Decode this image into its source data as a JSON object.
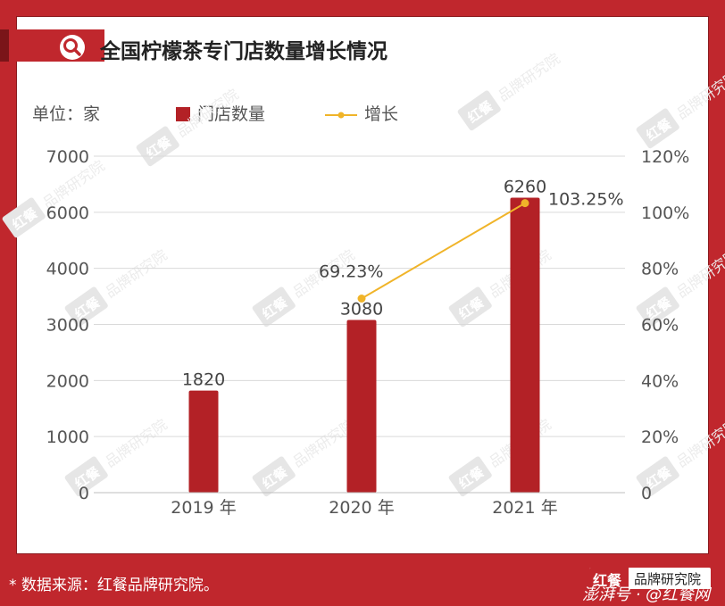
{
  "header": {
    "title": "全国柠檬茶专门店数量增长情况",
    "unit_label": "单位：家"
  },
  "legend": {
    "bar_label": "门店数量",
    "line_label": "增长"
  },
  "chart_data": {
    "type": "bar",
    "categories": [
      "2019 年",
      "2020 年",
      "2021 年"
    ],
    "series": [
      {
        "name": "门店数量",
        "type": "bar",
        "axis": "left",
        "values": [
          1820,
          3080,
          6260
        ],
        "color": "#b32126"
      },
      {
        "name": "增长",
        "type": "line",
        "axis": "right",
        "values": [
          null,
          69.23,
          103.25
        ],
        "color": "#f0b429"
      }
    ],
    "data_labels": {
      "bars": [
        "1820",
        "3080",
        "6260"
      ],
      "line": [
        "",
        "69.23%",
        "103.25%"
      ]
    },
    "y_left": {
      "ticks": [
        0,
        1000,
        2000,
        3000,
        4000,
        6000,
        7000
      ],
      "tick_labels": [
        "0",
        "1000",
        "2000",
        "3000",
        "4000",
        "6000",
        "7000"
      ]
    },
    "y_right": {
      "ticks": [
        0,
        20,
        40,
        60,
        80,
        100,
        120
      ],
      "tick_labels": [
        "0",
        "20%",
        "40%",
        "60%",
        "80%",
        "100%",
        "120%"
      ],
      "ylim": [
        0,
        120
      ]
    },
    "grid": true
  },
  "watermark": {
    "brand": "红餐",
    "text": "品牌研究院"
  },
  "footer": {
    "note": "* 数据来源：红餐品牌研究院。",
    "logo_brand": "红餐",
    "logo_text": "品牌研究院",
    "credit": "澎湃号 · @红餐网"
  },
  "colors": {
    "frame": "#c0272d",
    "bar": "#b32126",
    "line": "#f0b429"
  }
}
